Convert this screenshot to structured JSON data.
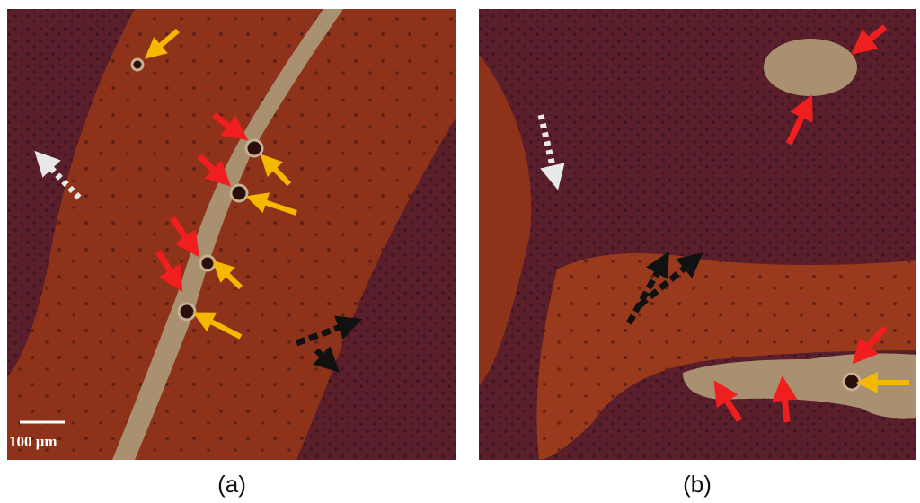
{
  "panels": [
    {
      "label": "(a)",
      "scale_bar": "100 μm"
    },
    {
      "label": "(b)"
    }
  ]
}
